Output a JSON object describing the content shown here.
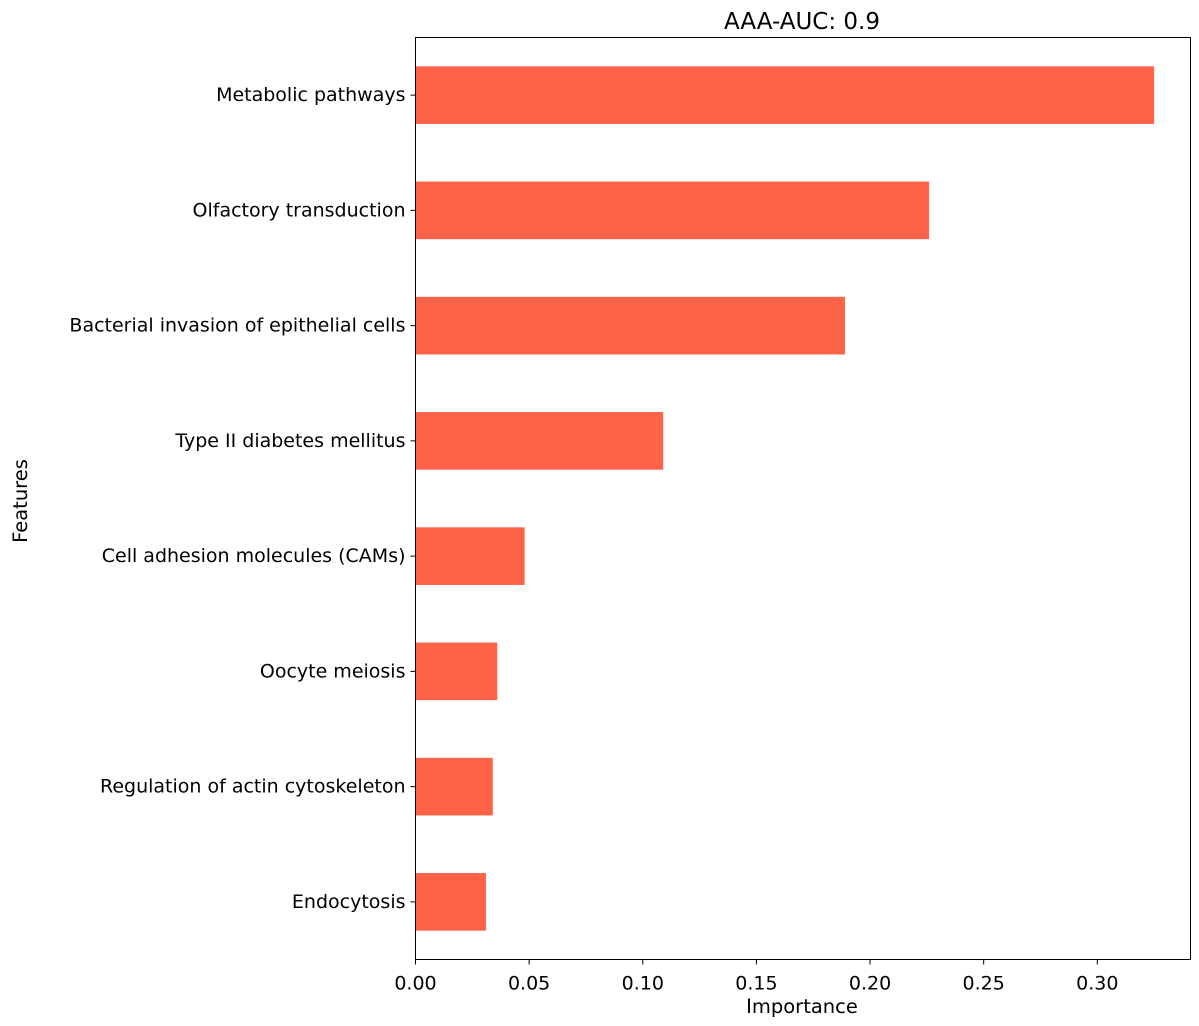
{
  "chart_data": {
    "type": "bar",
    "orientation": "horizontal",
    "title": "AAA-AUC: 0.9",
    "xlabel": "Importance",
    "ylabel": "Features",
    "categories": [
      "Metabolic pathways",
      "Olfactory transduction",
      "Bacterial invasion of epithelial cells",
      "Type II diabetes mellitus",
      "Cell adhesion molecules (CAMs)",
      "Oocyte meiosis",
      "Regulation of actin cytoskeleton",
      "Endocytosis"
    ],
    "values": [
      0.325,
      0.226,
      0.189,
      0.109,
      0.048,
      0.036,
      0.034,
      0.031
    ],
    "xlim": [
      0,
      0.341
    ],
    "xticks": [
      0.0,
      0.05,
      0.1,
      0.15,
      0.2,
      0.25,
      0.3
    ],
    "xtick_labels": [
      "0.00",
      "0.05",
      "0.10",
      "0.15",
      "0.20",
      "0.25",
      "0.30"
    ],
    "bar_color": "#ff6347",
    "grid": false,
    "legend": "none"
  }
}
